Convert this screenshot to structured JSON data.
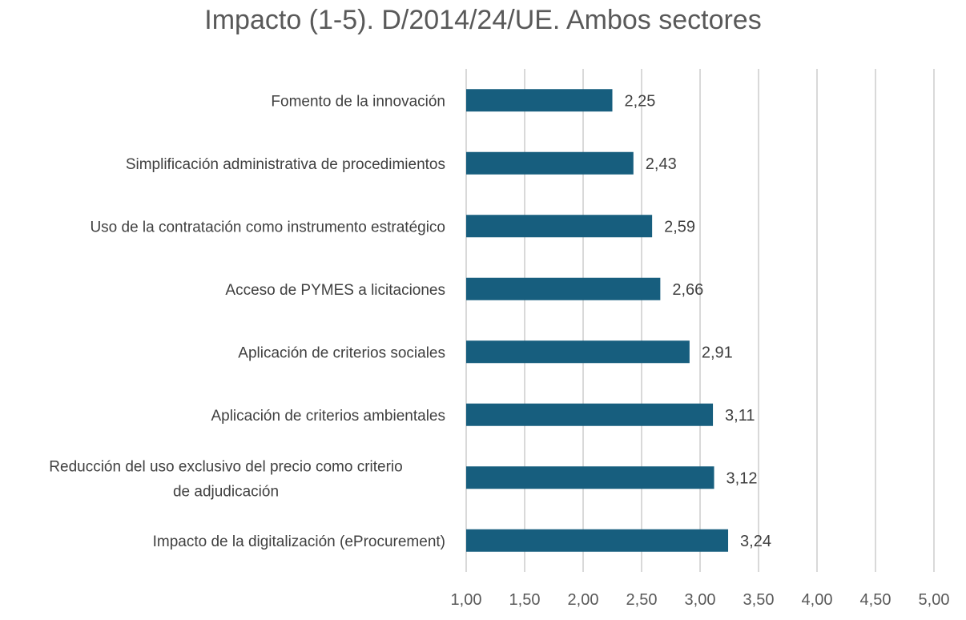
{
  "chart_data": {
    "type": "bar",
    "orientation": "horizontal",
    "title": "Impacto (1-5). D/2014/24/UE. Ambos sectores",
    "xlabel": "",
    "ylabel": "",
    "xlim": [
      1,
      5
    ],
    "grid": true,
    "categories": [
      "Fomento de la innovación",
      "Simplificación administrativa de procedimientos",
      "Uso de la contratación como instrumento estratégico",
      "Acceso de PYMES a licitaciones",
      "Aplicación de criterios sociales",
      "Aplicación de criterios ambientales",
      "Reducción del uso exclusivo del precio como criterio\nde adjudicación",
      "Impacto de la digitalización (eProcurement)"
    ],
    "values": [
      2.25,
      2.43,
      2.59,
      2.66,
      2.91,
      3.11,
      3.12,
      3.24
    ],
    "data_labels": [
      "2,25",
      "2,43",
      "2,59",
      "2,66",
      "2,91",
      "3,11",
      "3,12",
      "3,24"
    ],
    "x_ticks": [
      1,
      1.5,
      2,
      2.5,
      3,
      3.5,
      4,
      4.5,
      5
    ],
    "x_tick_labels": [
      "1,00",
      "1,50",
      "2,00",
      "2,50",
      "3,00",
      "3,50",
      "4,00",
      "4,50",
      "5,00"
    ],
    "colors": {
      "bar": "#175E7E",
      "grid": "#D9D9D9",
      "text": "#404040",
      "title": "#595959"
    }
  }
}
